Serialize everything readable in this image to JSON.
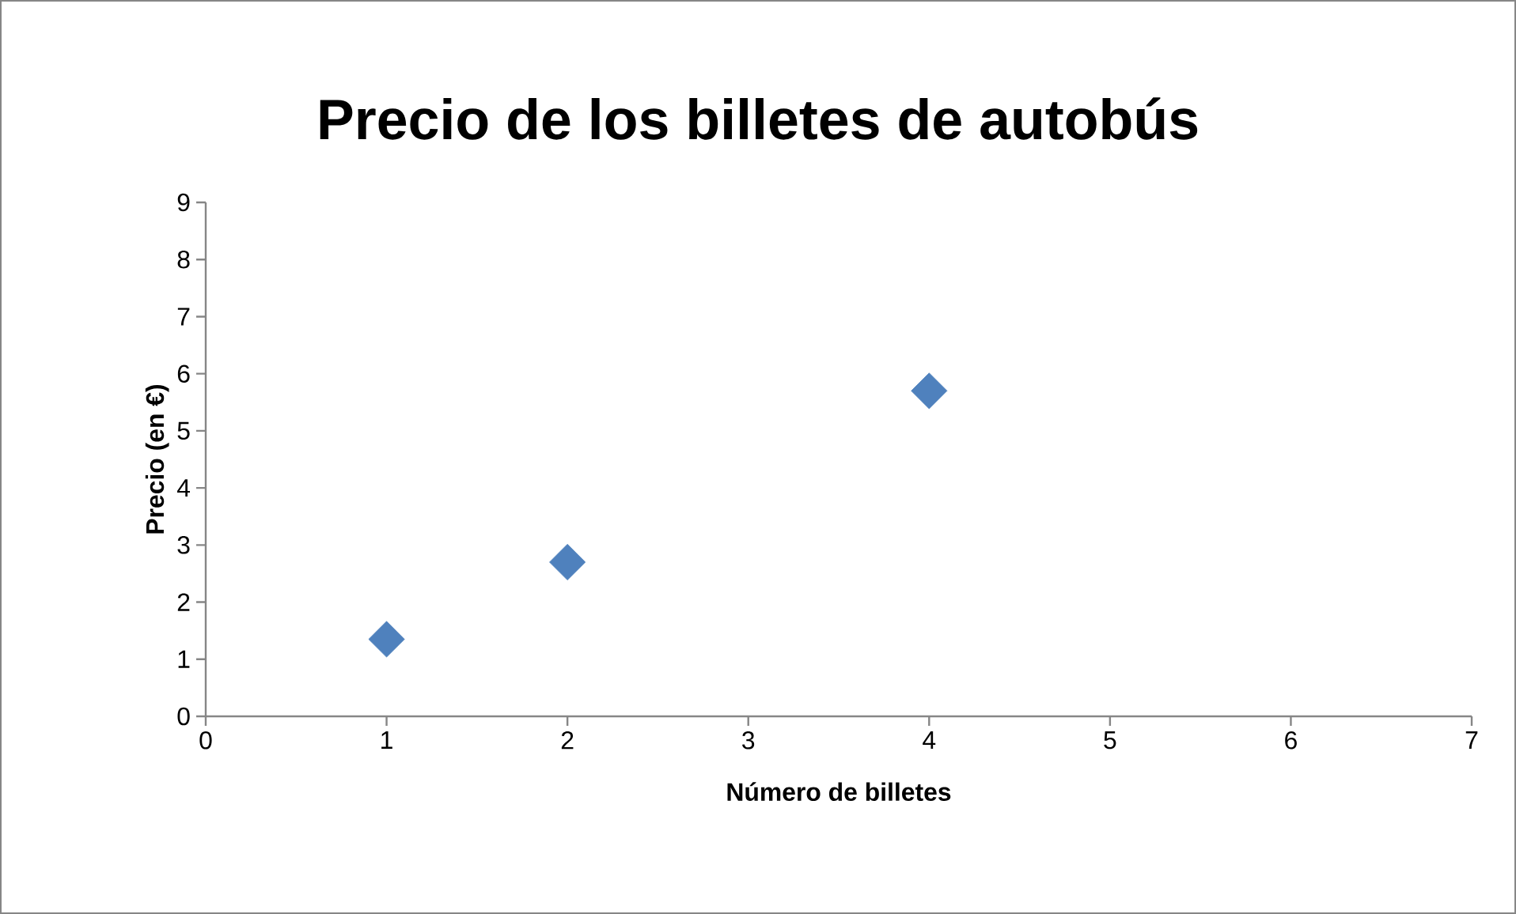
{
  "chart_data": {
    "type": "scatter",
    "title": "Precio de los billetes de autobús",
    "xlabel": "Número de billetes",
    "ylabel": "Precio (en €)",
    "x": [
      1,
      2,
      4
    ],
    "values": [
      1.35,
      2.7,
      5.7
    ],
    "color": "#4f81bd",
    "marker": "diamond",
    "xlim": [
      0,
      7
    ],
    "xticks": [
      0,
      1,
      2,
      3,
      4,
      5,
      6,
      7
    ],
    "ylim": [
      0,
      9
    ],
    "yticks": [
      0,
      1,
      2,
      3,
      4,
      5,
      6,
      7,
      8,
      9
    ],
    "grid": false
  }
}
